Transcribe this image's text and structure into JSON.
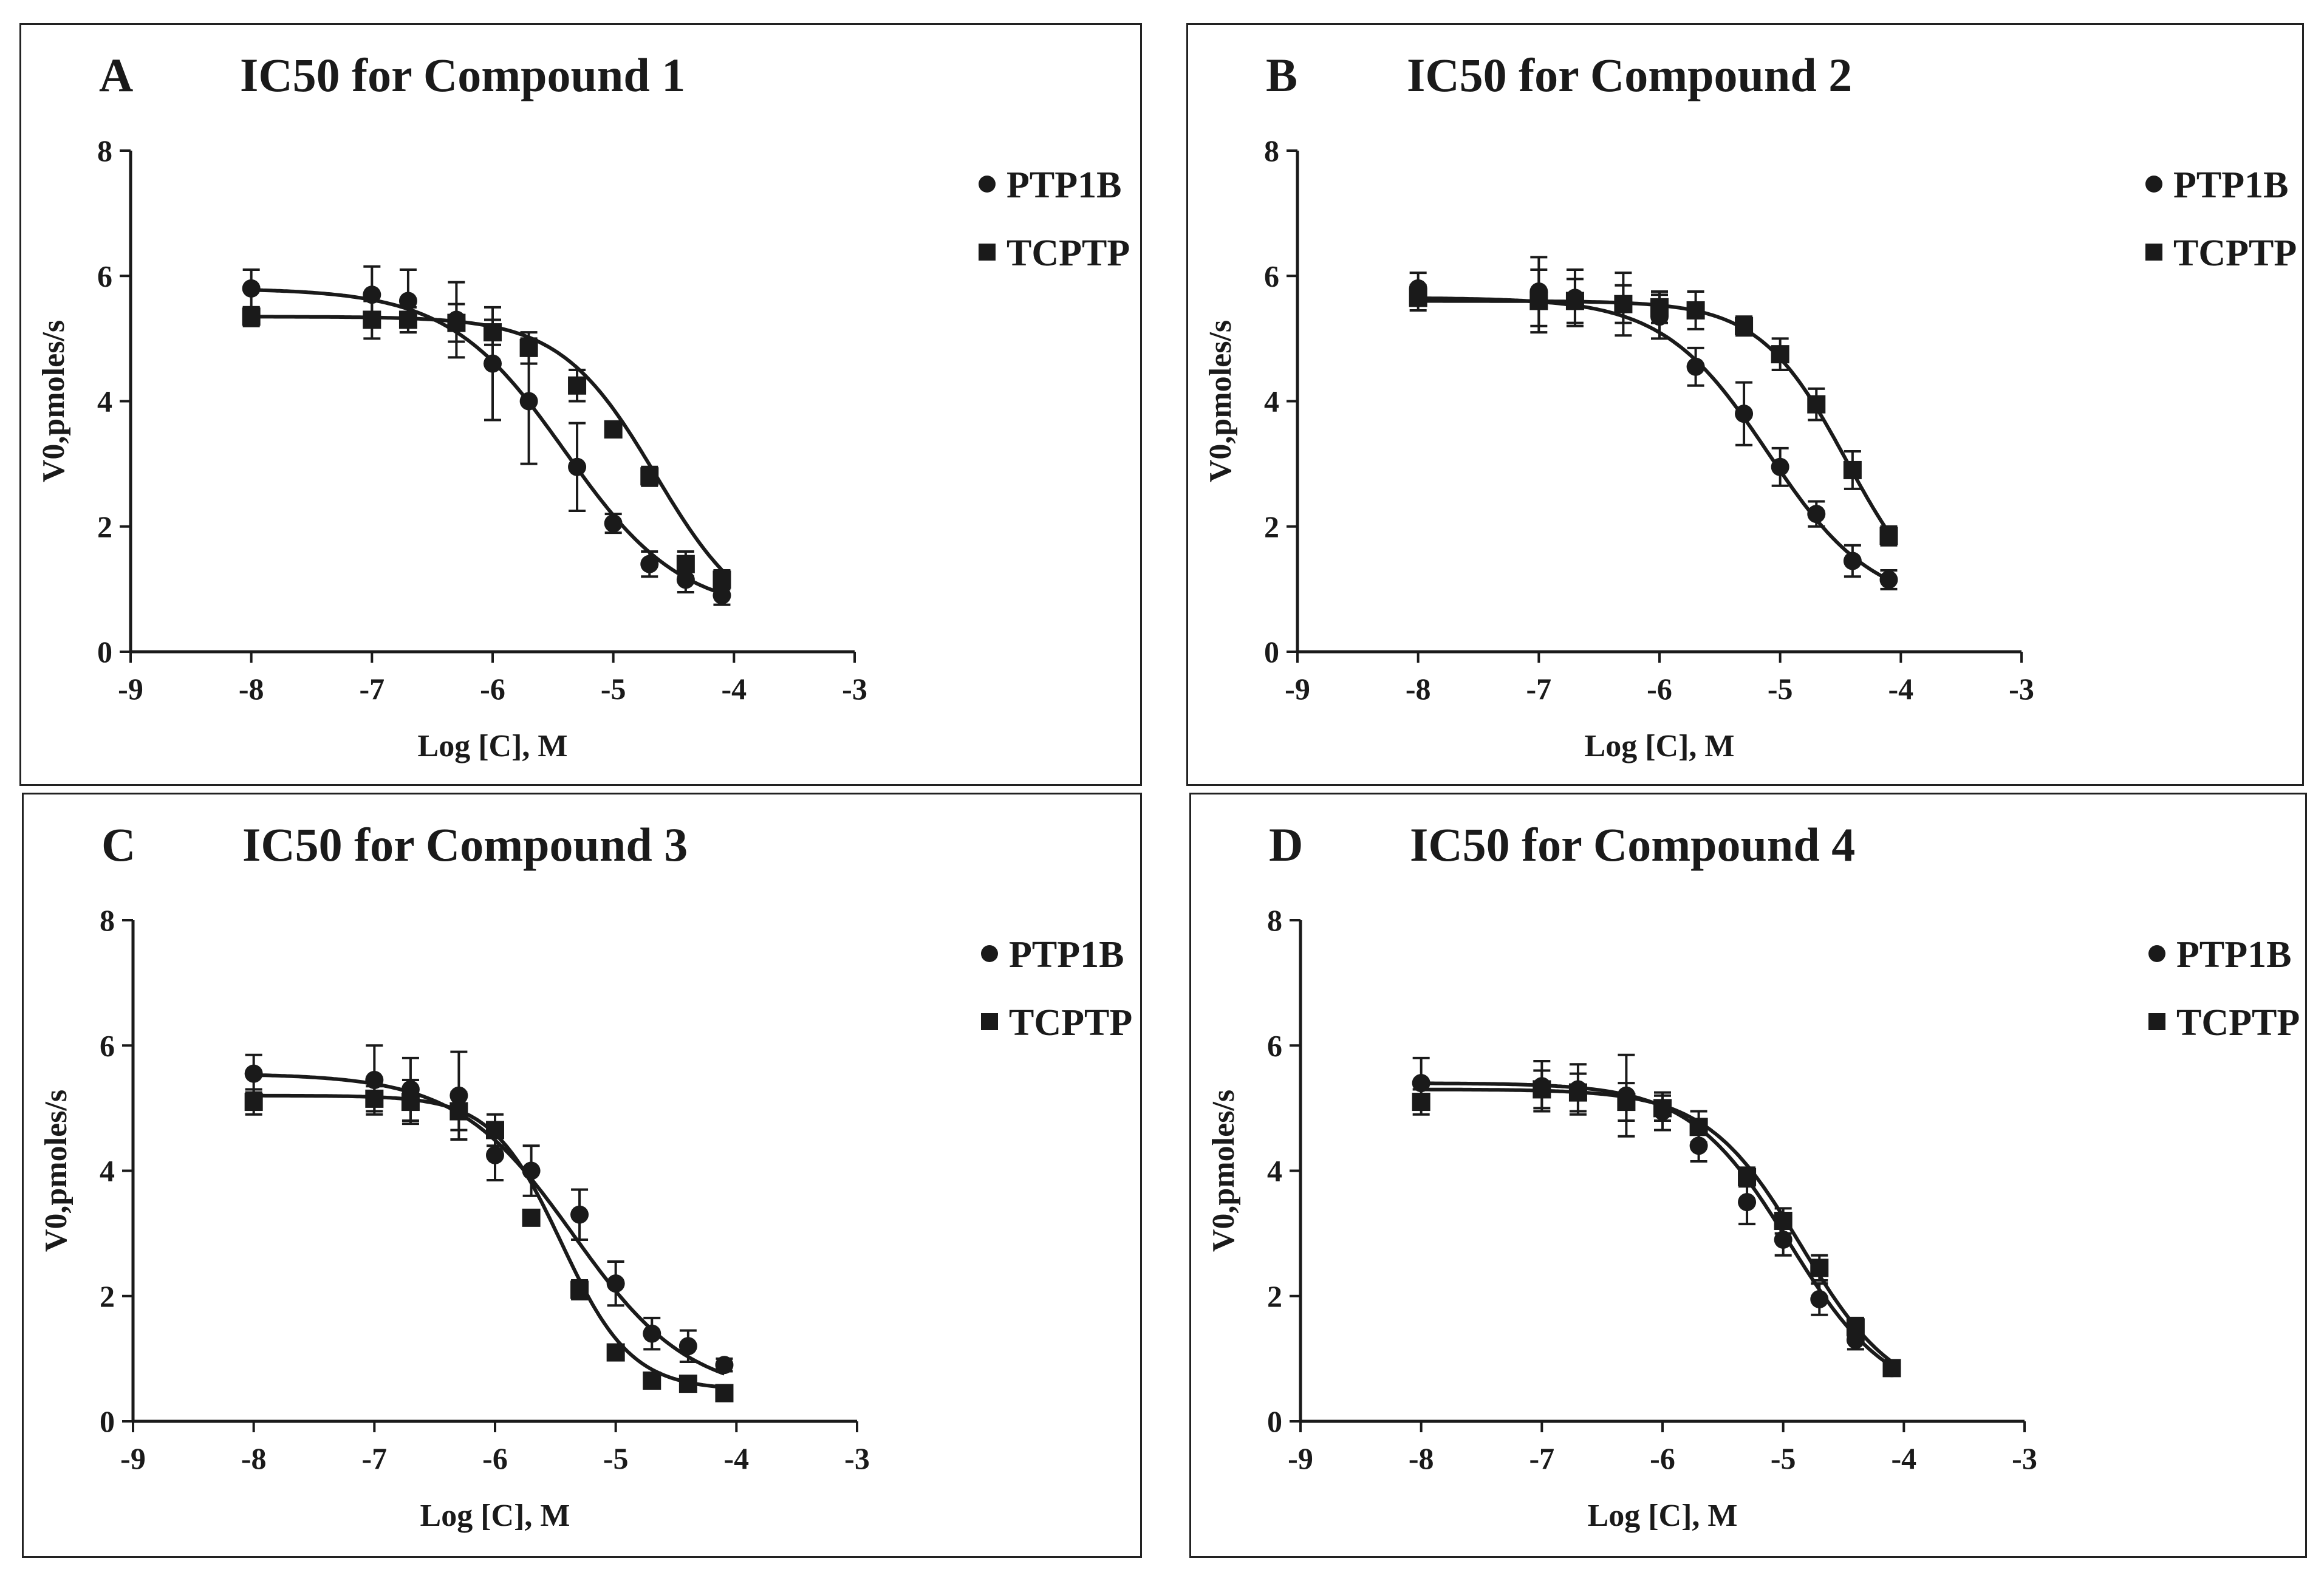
{
  "figure": {
    "xlabel": "Log [C], M",
    "ylabel": "V0,pmoles/s",
    "legend_placement": "top-right"
  },
  "chart_data": [
    {
      "type": "line",
      "letter": "A",
      "title": "IC50 for Compound 1",
      "xlabel": "Log [C], M",
      "ylabel": "V0,pmoles/s",
      "xlim": [
        -9,
        -3
      ],
      "ylim": [
        0,
        8
      ],
      "xticks": [
        -9,
        -8,
        -7,
        -6,
        -5,
        -4,
        -3
      ],
      "yticks": [
        0,
        2,
        4,
        6,
        8
      ],
      "series": [
        {
          "name": "PTP1B",
          "marker": "circle",
          "x": [
            -8,
            -7,
            -6.7,
            -6.3,
            -6,
            -5.7,
            -5.3,
            -5,
            -4.7,
            -4.4,
            -4.1
          ],
          "y": [
            5.8,
            5.7,
            5.6,
            5.3,
            4.6,
            4.0,
            2.95,
            2.05,
            1.4,
            1.15,
            0.9
          ],
          "err": [
            0.3,
            0.45,
            0.5,
            0.6,
            0.9,
            1.0,
            0.7,
            0.15,
            0.2,
            0.2,
            0.15
          ],
          "fit": {
            "top": 5.8,
            "bottom": 0.6,
            "logic50": -5.4,
            "hill": 0.9
          }
        },
        {
          "name": "TCPTP",
          "marker": "square",
          "x": [
            -8,
            -7,
            -6.7,
            -6.3,
            -6,
            -5.7,
            -5.3,
            -5,
            -4.7,
            -4.4,
            -4.1
          ],
          "y": [
            5.35,
            5.3,
            5.3,
            5.25,
            5.1,
            4.85,
            4.25,
            3.55,
            2.8,
            1.4,
            1.15
          ],
          "err": [
            0.15,
            0.3,
            0.2,
            0.3,
            0.2,
            0.25,
            0.25,
            0.1,
            0.15,
            0.2,
            0.15
          ],
          "fit": {
            "top": 5.35,
            "bottom": 0.3,
            "logic50": -4.65,
            "hill": 1.1
          }
        }
      ]
    },
    {
      "type": "line",
      "letter": "B",
      "title": "IC50 for Compound 2",
      "xlabel": "Log [C], M",
      "ylabel": "V0,pmoles/s",
      "xlim": [
        -9,
        -3
      ],
      "ylim": [
        0,
        8
      ],
      "xticks": [
        -9,
        -8,
        -7,
        -6,
        -5,
        -4,
        -3
      ],
      "yticks": [
        0,
        2,
        4,
        6,
        8
      ],
      "series": [
        {
          "name": "PTP1B",
          "marker": "circle",
          "x": [
            -8,
            -7,
            -6.7,
            -6.3,
            -6,
            -5.7,
            -5.3,
            -5,
            -4.7,
            -4.4,
            -4.1
          ],
          "y": [
            5.8,
            5.75,
            5.65,
            5.55,
            5.35,
            4.55,
            3.8,
            2.95,
            2.2,
            1.45,
            1.15
          ],
          "err": [
            0.25,
            0.55,
            0.45,
            0.5,
            0.35,
            0.3,
            0.5,
            0.3,
            0.2,
            0.25,
            0.15
          ],
          "fit": {
            "top": 5.65,
            "bottom": 0.7,
            "logic50": -5.1,
            "hill": 1.0
          }
        },
        {
          "name": "TCPTP",
          "marker": "square",
          "x": [
            -8,
            -7,
            -6.7,
            -6.3,
            -6,
            -5.7,
            -5.3,
            -5,
            -4.7,
            -4.4,
            -4.1
          ],
          "y": [
            5.65,
            5.6,
            5.6,
            5.55,
            5.5,
            5.45,
            5.2,
            4.75,
            3.95,
            2.9,
            1.85
          ],
          "err": [
            0.2,
            0.5,
            0.35,
            0.3,
            0.25,
            0.3,
            0.15,
            0.25,
            0.25,
            0.3,
            0.15
          ],
          "fit": {
            "top": 5.6,
            "bottom": 0.5,
            "logic50": -4.45,
            "hill": 1.2
          }
        }
      ]
    },
    {
      "type": "line",
      "letter": "C",
      "title": "IC50 for Compound 3",
      "xlabel": "Log [C], M",
      "ylabel": "V0,pmoles/s",
      "xlim": [
        -9,
        -3
      ],
      "ylim": [
        0,
        8
      ],
      "xticks": [
        -9,
        -8,
        -7,
        -6,
        -5,
        -4,
        -3
      ],
      "yticks": [
        0,
        2,
        4,
        6,
        8
      ],
      "series": [
        {
          "name": "PTP1B",
          "marker": "circle",
          "x": [
            -8,
            -7,
            -6.7,
            -6.3,
            -6,
            -5.7,
            -5.3,
            -5,
            -4.7,
            -4.4,
            -4.1
          ],
          "y": [
            5.55,
            5.45,
            5.3,
            5.2,
            4.25,
            4.0,
            3.3,
            2.2,
            1.4,
            1.2,
            0.9
          ],
          "err": [
            0.3,
            0.55,
            0.5,
            0.7,
            0.4,
            0.4,
            0.4,
            0.35,
            0.25,
            0.25,
            0.1
          ],
          "fit": {
            "top": 5.55,
            "bottom": 0.4,
            "logic50": -5.35,
            "hill": 0.9
          }
        },
        {
          "name": "TCPTP",
          "marker": "square",
          "x": [
            -8,
            -7,
            -6.7,
            -6.3,
            -6,
            -5.7,
            -5.3,
            -5,
            -4.7,
            -4.4,
            -4.1
          ],
          "y": [
            5.1,
            5.15,
            5.1,
            4.95,
            4.65,
            3.25,
            2.1,
            1.1,
            0.65,
            0.6,
            0.45
          ],
          "err": [
            0.2,
            0.2,
            0.35,
            0.3,
            0.25,
            0.1,
            0.15,
            0.1,
            0.1,
            0.1,
            0.05
          ],
          "fit": {
            "top": 5.2,
            "bottom": 0.5,
            "logic50": -5.45,
            "hill": 1.5
          }
        }
      ]
    },
    {
      "type": "line",
      "letter": "D",
      "title": "IC50 for Compound 4",
      "xlabel": "Log [C], M",
      "ylabel": "V0,pmoles/s",
      "xlim": [
        -9,
        -3
      ],
      "ylim": [
        0,
        8
      ],
      "xticks": [
        -9,
        -8,
        -7,
        -6,
        -5,
        -4,
        -3
      ],
      "yticks": [
        0,
        2,
        4,
        6,
        8
      ],
      "series": [
        {
          "name": "PTP1B",
          "marker": "circle",
          "x": [
            -8,
            -7,
            -6.7,
            -6.3,
            -6,
            -5.7,
            -5.3,
            -5,
            -4.7,
            -4.4,
            -4.1
          ],
          "y": [
            5.4,
            5.35,
            5.3,
            5.2,
            4.95,
            4.4,
            3.5,
            2.9,
            1.95,
            1.3,
            0.85
          ],
          "err": [
            0.4,
            0.4,
            0.4,
            0.65,
            0.3,
            0.25,
            0.35,
            0.25,
            0.25,
            0.15,
            0.1
          ],
          "fit": {
            "top": 5.4,
            "bottom": 0.3,
            "logic50": -4.95,
            "hill": 1.05
          }
        },
        {
          "name": "TCPTP",
          "marker": "square",
          "x": [
            -8,
            -7,
            -6.7,
            -6.3,
            -6,
            -5.7,
            -5.3,
            -5,
            -4.7,
            -4.4,
            -4.1
          ],
          "y": [
            5.1,
            5.3,
            5.25,
            5.1,
            5.0,
            4.7,
            3.9,
            3.2,
            2.45,
            1.5,
            0.85
          ],
          "err": [
            0.2,
            0.3,
            0.3,
            0.3,
            0.2,
            0.25,
            0.15,
            0.2,
            0.2,
            0.15,
            0.1
          ],
          "fit": {
            "top": 5.3,
            "bottom": 0.3,
            "logic50": -4.85,
            "hill": 1.1
          }
        }
      ]
    }
  ]
}
